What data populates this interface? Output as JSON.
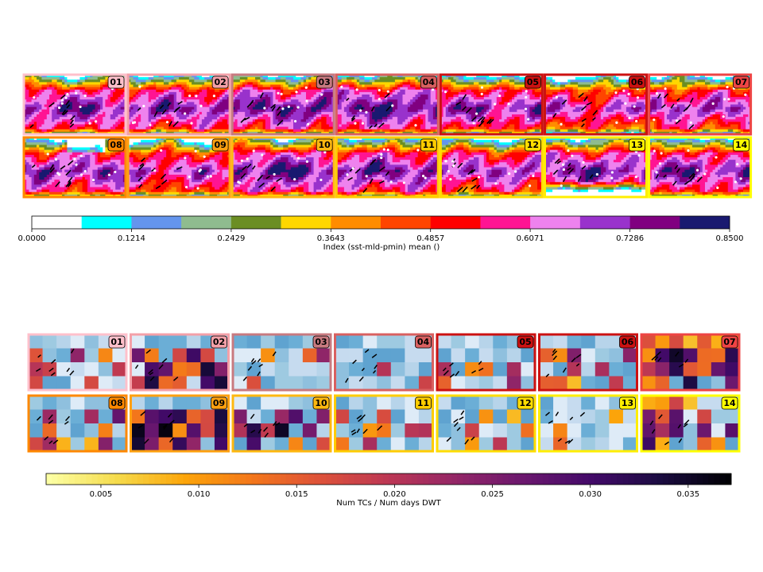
{
  "chart_data": [
    {
      "type": "heatmap",
      "panel_count": 14,
      "panel_labels": [
        "01",
        "02",
        "03",
        "04",
        "05",
        "06",
        "07",
        "08",
        "09",
        "10",
        "11",
        "12",
        "13",
        "14"
      ],
      "colorbar": {
        "label": "Index (sst-mld-pmin) mean ()",
        "range": [
          0.0,
          0.85
        ],
        "tick_values": [
          0.0,
          0.1214,
          0.2429,
          0.3643,
          0.4857,
          0.6071,
          0.7286,
          0.85
        ],
        "tick_labels": [
          "0.0000",
          "0.1214",
          "0.2429",
          "0.3643",
          "0.4857",
          "0.6071",
          "0.7286",
          "0.8500"
        ],
        "levels": [
          "#ffffff",
          "#00ffff",
          "#6495ed",
          "#8fbc8f",
          "#6b8e23",
          "#ffd700",
          "#ff8c00",
          "#ff4500",
          "#ff0000",
          "#ff1493",
          "#ee82ee",
          "#9932cc",
          "#800080",
          "#191970"
        ]
      },
      "panel_dominant_index": [
        0.62,
        0.6,
        0.64,
        0.66,
        0.58,
        0.5,
        0.56,
        0.6,
        0.52,
        0.66,
        0.62,
        0.56,
        0.62,
        0.6
      ]
    },
    {
      "type": "heatmap",
      "panel_count": 14,
      "panel_labels": [
        "01",
        "02",
        "03",
        "04",
        "05",
        "06",
        "07",
        "08",
        "09",
        "10",
        "11",
        "12",
        "13",
        "14"
      ],
      "colorbar": {
        "label": "Num TCs / Num days DWT",
        "range": [
          0.0022,
          0.0372
        ],
        "tick_values": [
          0.005,
          0.01,
          0.015,
          0.02,
          0.025,
          0.03,
          0.035
        ],
        "tick_labels": [
          "0.005",
          "0.010",
          "0.015",
          "0.020",
          "0.025",
          "0.030",
          "0.035"
        ],
        "colormap": "inferno_r"
      },
      "grid": {
        "rows": 4,
        "cols": 7
      }
    }
  ],
  "panel_frame_colors": [
    "#ffc0cb",
    "#f4a0a8",
    "#c87a80",
    "#d96060",
    "#cc1111",
    "#cc1111",
    "#ee4444",
    "#ff8800",
    "#ffa010",
    "#ffb810",
    "#ffcc00",
    "#ffdd00",
    "#ffee00",
    "#ffff00"
  ]
}
